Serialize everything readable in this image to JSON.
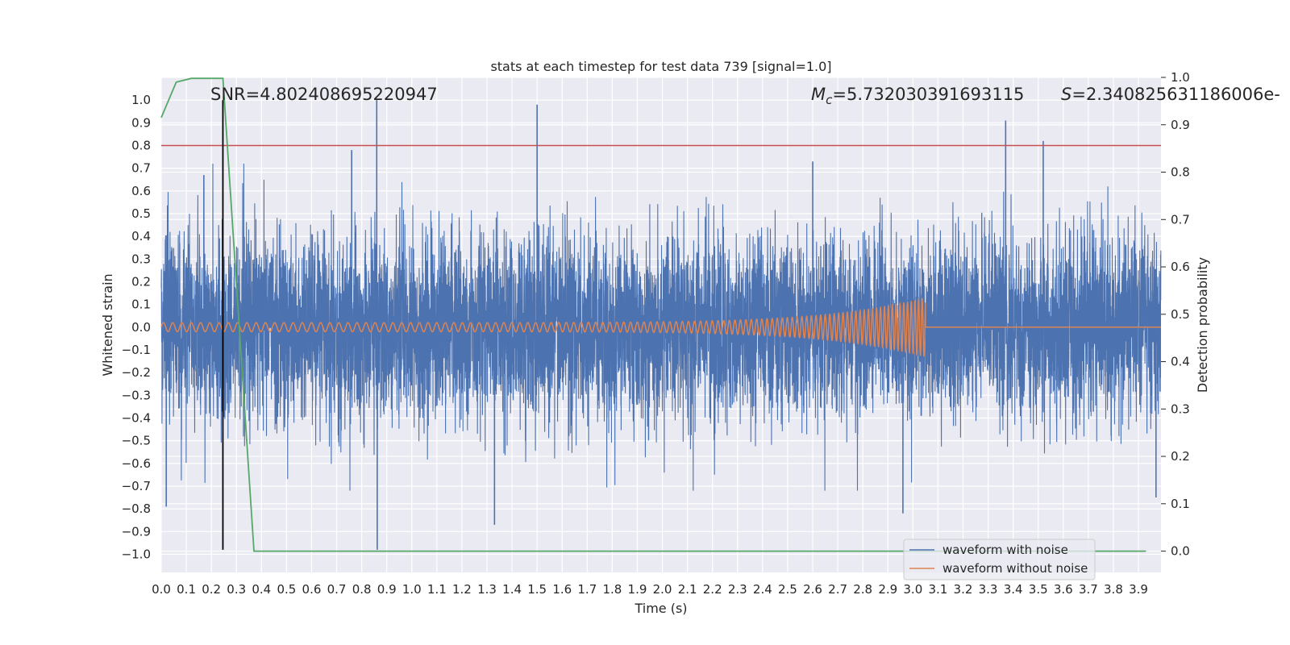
{
  "chart_data": {
    "type": "line",
    "title": "stats at each timestep for test data 739 [signal=1.0]",
    "xlabel": "Time (s)",
    "ylabel": "Whitened strain",
    "y2label": "Detection probability",
    "xlim": [
      0.0,
      3.99
    ],
    "ylim": [
      -1.08,
      1.1
    ],
    "y2lim": [
      -0.045,
      1.0
    ],
    "x_ticks": [
      0.0,
      0.1,
      0.2,
      0.3,
      0.4,
      0.5,
      0.6,
      0.7,
      0.8,
      0.9,
      1.0,
      1.1,
      1.2,
      1.3,
      1.4,
      1.5,
      1.6,
      1.7,
      1.8,
      1.9,
      2.0,
      2.1,
      2.2,
      2.3,
      2.4,
      2.5,
      2.6,
      2.7,
      2.8,
      2.9,
      3.0,
      3.1,
      3.2,
      3.3,
      3.4,
      3.5,
      3.6,
      3.7,
      3.8,
      3.9
    ],
    "x_tick_labels": [
      "0.0",
      "0.1",
      "0.2",
      "0.3",
      "0.4",
      "0.5",
      "0.6",
      "0.7",
      "0.8",
      "0.9",
      "1.0",
      "1.1",
      "1.2",
      "1.3",
      "1.4",
      "1.5",
      "1.6",
      "1.7",
      "1.8",
      "1.9",
      "2.0",
      "2.1",
      "2.2",
      "2.3",
      "2.4",
      "2.5",
      "2.6",
      "2.7",
      "2.8",
      "2.9",
      "3.0",
      "3.1",
      "3.2",
      "3.3",
      "3.4",
      "3.5",
      "3.6",
      "3.7",
      "3.8",
      "3.9"
    ],
    "y_ticks": [
      1.0,
      0.9,
      0.8,
      0.7,
      0.6,
      0.5,
      0.4,
      0.3,
      0.2,
      0.1,
      0.0,
      -0.1,
      -0.2,
      -0.3,
      -0.4,
      -0.5,
      -0.6,
      -0.7,
      -0.8,
      -0.9,
      -1.0
    ],
    "y_tick_labels": [
      "1.0",
      "0.9",
      "0.8",
      "0.7",
      "0.6",
      "0.5",
      "0.4",
      "0.3",
      "0.2",
      "0.1",
      "0.0",
      "−0.1",
      "−0.2",
      "−0.3",
      "−0.4",
      "−0.5",
      "−0.6",
      "−0.7",
      "−0.8",
      "−0.9",
      "−1.0"
    ],
    "y2_ticks": [
      1.0,
      0.9,
      0.8,
      0.7,
      0.6,
      0.5,
      0.4,
      0.3,
      0.2,
      0.1,
      0.0
    ],
    "y2_tick_labels": [
      "1.0",
      "0.9",
      "0.8",
      "0.7",
      "0.6",
      "0.5",
      "0.4",
      "0.3",
      "0.2",
      "0.1",
      "0.0"
    ],
    "grid": true,
    "legend_position": "lower-right",
    "annotations": {
      "snr": "SNR=4.802408695220947",
      "mc": "M",
      "mc_sub": "c",
      "mc_value": "=5.732030391693115",
      "s_symbol": "S",
      "s_value": "=2.340825631186006e-"
    },
    "series": [
      {
        "name": "waveform with noise",
        "color": "#4c72b0",
        "x_range": [
          0.0,
          3.99
        ],
        "sample_spacing": 0.0005,
        "typical_amplitude": 0.2,
        "spikes": [
          {
            "x": 0.86,
            "y": 1.0
          },
          {
            "x": 0.862,
            "y": -0.98
          },
          {
            "x": 1.5,
            "y": 0.98
          },
          {
            "x": 3.37,
            "y": 0.91
          },
          {
            "x": 3.52,
            "y": 0.82
          },
          {
            "x": 0.02,
            "y": -0.79
          },
          {
            "x": 1.33,
            "y": -0.87
          },
          {
            "x": 2.96,
            "y": -0.82
          },
          {
            "x": 0.76,
            "y": 0.78
          },
          {
            "x": 0.17,
            "y": 0.67
          },
          {
            "x": 2.6,
            "y": 0.73
          },
          {
            "x": 3.97,
            "y": -0.75
          }
        ]
      },
      {
        "name": "waveform without noise",
        "color": "#dd8452",
        "x_range": [
          0.0,
          3.99
        ],
        "chirp_end": 3.05,
        "start_amplitude": 0.02,
        "end_amplitude": 0.13,
        "start_frequency": 27,
        "end_frequency": 70
      },
      {
        "name": "",
        "color": "#55a868",
        "axis": "right",
        "x": [
          0.0,
          0.06,
          0.12,
          0.18,
          0.246,
          0.37,
          3.93
        ],
        "y": [
          0.915,
          0.99,
          0.998,
          0.998,
          0.998,
          0.0,
          0.0
        ]
      }
    ],
    "reference_lines": [
      {
        "orientation": "horizontal",
        "axis": "left",
        "y": 0.8,
        "color": "#c44e52"
      },
      {
        "orientation": "vertical",
        "x": 0.246,
        "y_from": -0.98,
        "y_to": 1.0,
        "color": "#000000"
      }
    ]
  }
}
